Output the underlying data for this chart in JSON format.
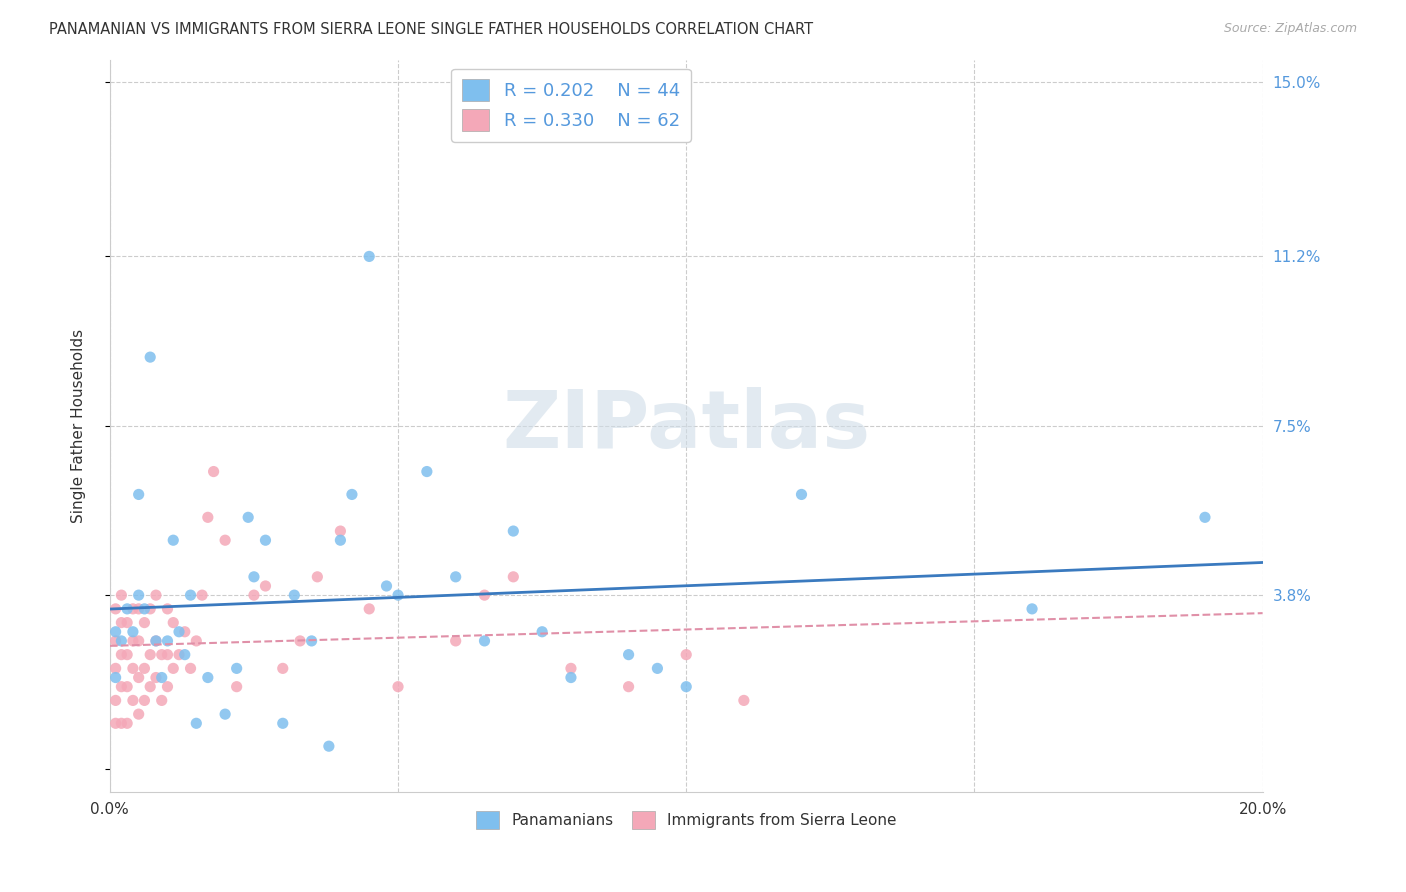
{
  "title": "PANAMANIAN VS IMMIGRANTS FROM SIERRA LEONE SINGLE FATHER HOUSEHOLDS CORRELATION CHART",
  "source": "Source: ZipAtlas.com",
  "ylabel": "Single Father Households",
  "xlim": [
    0.0,
    0.2
  ],
  "ylim": [
    -0.005,
    0.155
  ],
  "xticks": [
    0.0,
    0.05,
    0.1,
    0.15,
    0.2
  ],
  "xtick_labels": [
    "0.0%",
    "",
    "",
    "",
    "20.0%"
  ],
  "ytick_labels_right": [
    "15.0%",
    "11.2%",
    "7.5%",
    "3.8%",
    ""
  ],
  "ytick_values_right": [
    0.15,
    0.112,
    0.075,
    0.038,
    0.0
  ],
  "R_blue": 0.202,
  "N_blue": 44,
  "R_pink": 0.33,
  "N_pink": 62,
  "blue_color": "#7fbfee",
  "pink_color": "#f4a8b8",
  "line_blue": "#3a7abf",
  "line_pink": "#e06080",
  "line_pink_dash": "#e090a8",
  "background_color": "#ffffff",
  "grid_color": "#cccccc",
  "watermark": "ZIPatlas",
  "blue_points_x": [
    0.001,
    0.001,
    0.002,
    0.003,
    0.004,
    0.005,
    0.005,
    0.006,
    0.007,
    0.008,
    0.009,
    0.01,
    0.011,
    0.012,
    0.013,
    0.014,
    0.015,
    0.017,
    0.02,
    0.022,
    0.024,
    0.025,
    0.027,
    0.03,
    0.032,
    0.035,
    0.038,
    0.04,
    0.042,
    0.045,
    0.048,
    0.05,
    0.055,
    0.06,
    0.065,
    0.07,
    0.075,
    0.08,
    0.09,
    0.095,
    0.1,
    0.12,
    0.16,
    0.19
  ],
  "blue_points_y": [
    0.02,
    0.03,
    0.028,
    0.035,
    0.03,
    0.06,
    0.038,
    0.035,
    0.09,
    0.028,
    0.02,
    0.028,
    0.05,
    0.03,
    0.025,
    0.038,
    0.01,
    0.02,
    0.012,
    0.022,
    0.055,
    0.042,
    0.05,
    0.01,
    0.038,
    0.028,
    0.005,
    0.05,
    0.06,
    0.112,
    0.04,
    0.038,
    0.065,
    0.042,
    0.028,
    0.052,
    0.03,
    0.02,
    0.025,
    0.022,
    0.018,
    0.06,
    0.035,
    0.055
  ],
  "pink_points_x": [
    0.001,
    0.001,
    0.001,
    0.001,
    0.001,
    0.002,
    0.002,
    0.002,
    0.002,
    0.002,
    0.003,
    0.003,
    0.003,
    0.003,
    0.004,
    0.004,
    0.004,
    0.004,
    0.005,
    0.005,
    0.005,
    0.005,
    0.006,
    0.006,
    0.006,
    0.007,
    0.007,
    0.007,
    0.008,
    0.008,
    0.008,
    0.009,
    0.009,
    0.01,
    0.01,
    0.01,
    0.011,
    0.011,
    0.012,
    0.013,
    0.014,
    0.015,
    0.016,
    0.017,
    0.018,
    0.02,
    0.022,
    0.025,
    0.027,
    0.03,
    0.033,
    0.036,
    0.04,
    0.045,
    0.05,
    0.06,
    0.065,
    0.07,
    0.08,
    0.09,
    0.1,
    0.11
  ],
  "pink_points_y": [
    0.01,
    0.015,
    0.022,
    0.028,
    0.035,
    0.01,
    0.018,
    0.025,
    0.032,
    0.038,
    0.01,
    0.018,
    0.025,
    0.032,
    0.015,
    0.022,
    0.028,
    0.035,
    0.012,
    0.02,
    0.028,
    0.035,
    0.015,
    0.022,
    0.032,
    0.018,
    0.025,
    0.035,
    0.02,
    0.028,
    0.038,
    0.015,
    0.025,
    0.018,
    0.025,
    0.035,
    0.022,
    0.032,
    0.025,
    0.03,
    0.022,
    0.028,
    0.038,
    0.055,
    0.065,
    0.05,
    0.018,
    0.038,
    0.04,
    0.022,
    0.028,
    0.042,
    0.052,
    0.035,
    0.018,
    0.028,
    0.038,
    0.042,
    0.022,
    0.018,
    0.025,
    0.015
  ]
}
